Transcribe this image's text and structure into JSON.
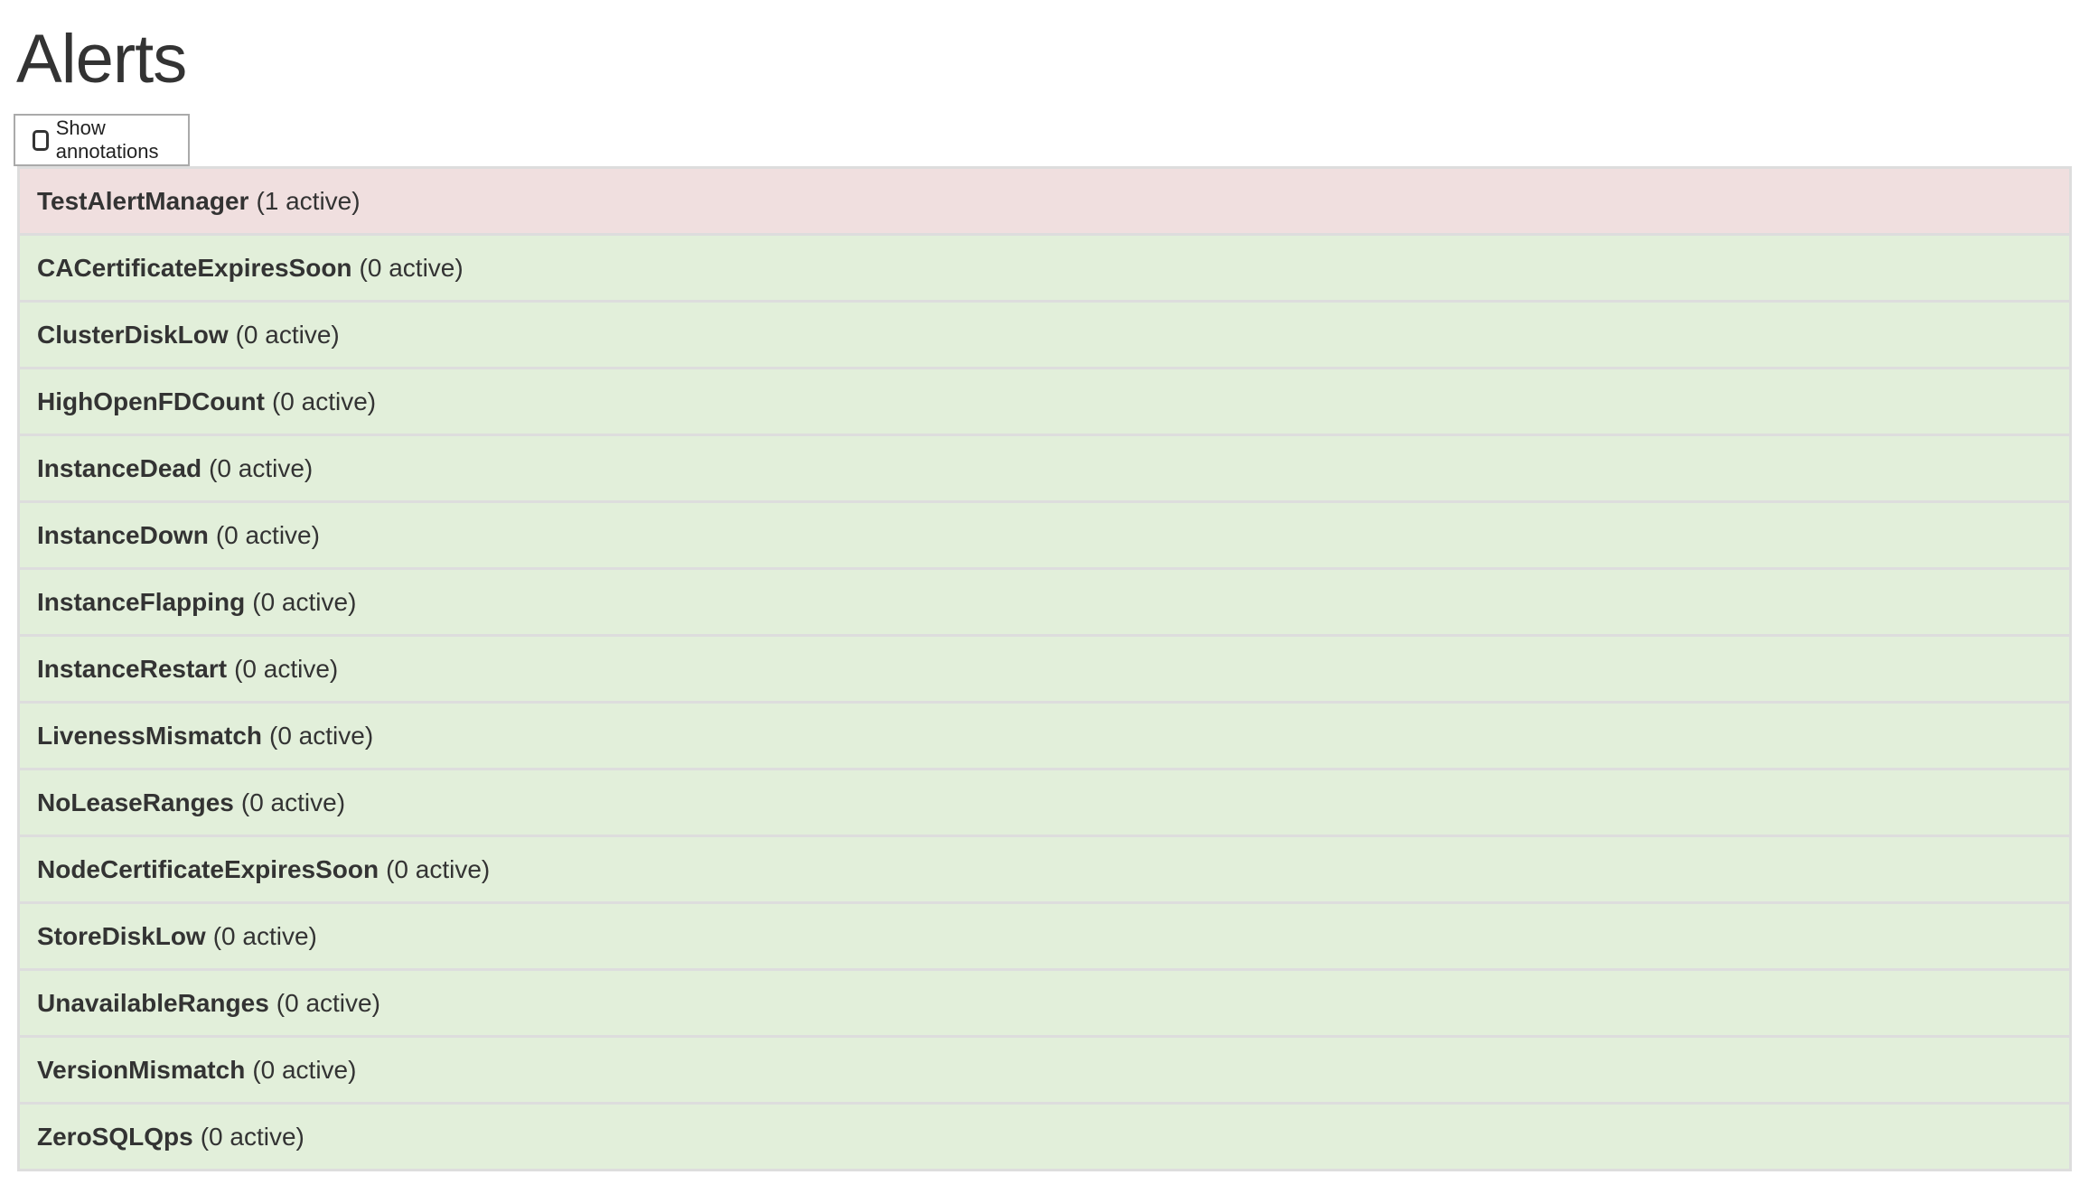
{
  "title": "Alerts",
  "show_annotations": {
    "label": "Show annotations",
    "checked": false
  },
  "colors": {
    "firing": "#f0dfdf",
    "inactive": "#e2efda",
    "border": "#dddddd"
  },
  "alerts": [
    {
      "name": "TestAlertManager",
      "count": "(1 active)",
      "state": "firing"
    },
    {
      "name": "CACertificateExpiresSoon",
      "count": "(0 active)",
      "state": "inactive"
    },
    {
      "name": "ClusterDiskLow",
      "count": "(0 active)",
      "state": "inactive"
    },
    {
      "name": "HighOpenFDCount",
      "count": "(0 active)",
      "state": "inactive"
    },
    {
      "name": "InstanceDead",
      "count": "(0 active)",
      "state": "inactive"
    },
    {
      "name": "InstanceDown",
      "count": "(0 active)",
      "state": "inactive"
    },
    {
      "name": "InstanceFlapping",
      "count": "(0 active)",
      "state": "inactive"
    },
    {
      "name": "InstanceRestart",
      "count": "(0 active)",
      "state": "inactive"
    },
    {
      "name": "LivenessMismatch",
      "count": "(0 active)",
      "state": "inactive"
    },
    {
      "name": "NoLeaseRanges",
      "count": "(0 active)",
      "state": "inactive"
    },
    {
      "name": "NodeCertificateExpiresSoon",
      "count": "(0 active)",
      "state": "inactive"
    },
    {
      "name": "StoreDiskLow",
      "count": "(0 active)",
      "state": "inactive"
    },
    {
      "name": "UnavailableRanges",
      "count": "(0 active)",
      "state": "inactive"
    },
    {
      "name": "VersionMismatch",
      "count": "(0 active)",
      "state": "inactive"
    },
    {
      "name": "ZeroSQLQps",
      "count": "(0 active)",
      "state": "inactive"
    }
  ]
}
